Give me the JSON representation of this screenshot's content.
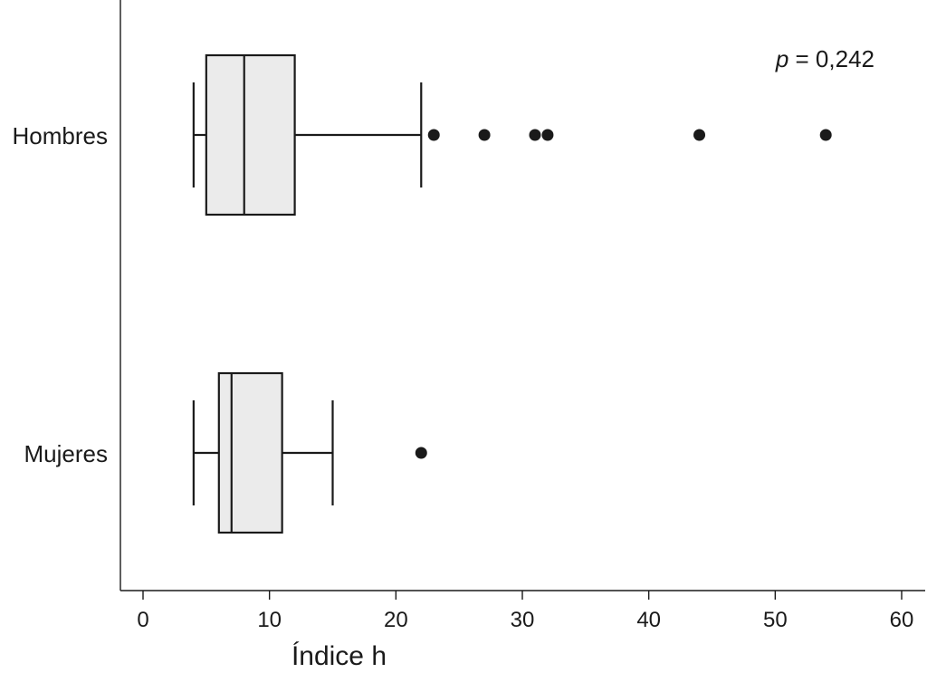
{
  "chart_data": {
    "type": "boxplot",
    "orientation": "horizontal",
    "xlabel": "Índice h",
    "xlim": [
      -2,
      62
    ],
    "xticks": [
      0,
      10,
      20,
      30,
      40,
      50,
      60
    ],
    "grid": false,
    "annotation": {
      "italic": "p",
      "text": " = 0,242"
    },
    "categories": [
      "Hombres",
      "Mujeres"
    ],
    "series": [
      {
        "category": "Hombres",
        "whisker_low": 4,
        "q1": 5,
        "median": 8,
        "q3": 12,
        "whisker_high": 22,
        "outliers": [
          23,
          27,
          31,
          32,
          44,
          54
        ]
      },
      {
        "category": "Mujeres",
        "whisker_low": 4,
        "q1": 6,
        "median": 7,
        "q3": 11,
        "whisker_high": 15,
        "outliers": [
          22
        ]
      }
    ],
    "colors": {
      "box_fill": "#ebebeb",
      "stroke": "#1a1a1a"
    }
  }
}
